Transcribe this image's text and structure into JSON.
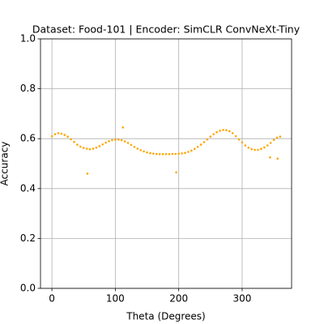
{
  "chart_data": {
    "type": "scatter",
    "title": "Dataset: Food-101 | Encoder: SimCLR ConvNeXt-Tiny",
    "xlabel": "Theta (Degrees)",
    "ylabel": "Accuracy",
    "series": [
      {
        "color": "#ffa500",
        "x": [
          0,
          5,
          10,
          15,
          20,
          25,
          30,
          35,
          40,
          45,
          50,
          55,
          60,
          65,
          70,
          75,
          80,
          85,
          90,
          95,
          100,
          105,
          110,
          115,
          120,
          125,
          130,
          135,
          140,
          145,
          150,
          155,
          160,
          165,
          170,
          175,
          180,
          185,
          190,
          195,
          200,
          205,
          210,
          215,
          220,
          225,
          230,
          235,
          240,
          245,
          250,
          255,
          260,
          265,
          270,
          275,
          280,
          285,
          290,
          295,
          300,
          305,
          310,
          315,
          320,
          325,
          330,
          335,
          340,
          345,
          350,
          355,
          360,
          56,
          112,
          196,
          344,
          356
        ],
        "values": [
          0.61,
          0.618,
          0.622,
          0.62,
          0.615,
          0.608,
          0.598,
          0.587,
          0.576,
          0.568,
          0.563,
          0.56,
          0.558,
          0.56,
          0.564,
          0.57,
          0.577,
          0.584,
          0.59,
          0.594,
          0.596,
          0.596,
          0.594,
          0.589,
          0.583,
          0.575,
          0.567,
          0.56,
          0.554,
          0.549,
          0.545,
          0.542,
          0.54,
          0.539,
          0.538,
          0.538,
          0.538,
          0.538,
          0.539,
          0.539,
          0.54,
          0.541,
          0.543,
          0.547,
          0.552,
          0.559,
          0.567,
          0.576,
          0.586,
          0.597,
          0.608,
          0.618,
          0.626,
          0.632,
          0.635,
          0.634,
          0.63,
          0.622,
          0.61,
          0.597,
          0.585,
          0.573,
          0.564,
          0.558,
          0.555,
          0.555,
          0.559,
          0.565,
          0.573,
          0.583,
          0.595,
          0.604,
          0.608,
          0.46,
          0.645,
          0.465,
          0.525,
          0.52
        ]
      }
    ],
    "xlim": [
      -18,
      378
    ],
    "ylim": [
      0,
      1
    ],
    "xticks": [
      0,
      100,
      200,
      300
    ],
    "yticks": [
      {
        "value": 0,
        "label": "0.0"
      },
      {
        "value": 0.2,
        "label": "0.2"
      },
      {
        "value": 0.4,
        "label": "0.4"
      },
      {
        "value": 0.6,
        "label": "0.6"
      },
      {
        "value": 0.8,
        "label": "0.8"
      },
      {
        "value": 1,
        "label": "1.0"
      }
    ],
    "grid": true
  }
}
